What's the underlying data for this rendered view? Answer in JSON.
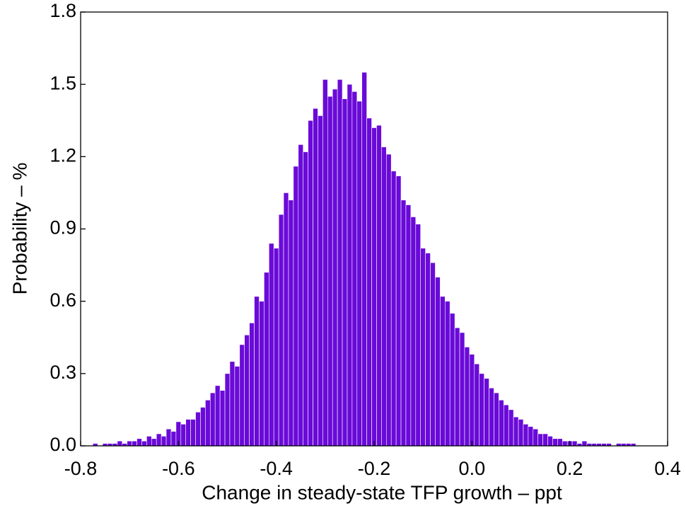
{
  "chart_data": {
    "type": "histogram",
    "xlabel": "Change in steady-state TFP growth – ppt",
    "ylabel": "Probability – %",
    "color": "#6a0ad8",
    "bins": [
      -0.775,
      -0.765,
      -0.755,
      -0.745,
      -0.735,
      -0.725,
      -0.715,
      -0.705,
      -0.695,
      -0.685,
      -0.675,
      -0.665,
      -0.655,
      -0.645,
      -0.635,
      -0.625,
      -0.615,
      -0.605,
      -0.595,
      -0.585,
      -0.575,
      -0.565,
      -0.555,
      -0.545,
      -0.535,
      -0.525,
      -0.515,
      -0.505,
      -0.495,
      -0.485,
      -0.475,
      -0.465,
      -0.455,
      -0.445,
      -0.435,
      -0.425,
      -0.415,
      -0.405,
      -0.395,
      -0.385,
      -0.375,
      -0.365,
      -0.355,
      -0.345,
      -0.335,
      -0.325,
      -0.315,
      -0.305,
      -0.295,
      -0.285,
      -0.275,
      -0.265,
      -0.255,
      -0.245,
      -0.235,
      -0.225,
      -0.215,
      -0.205,
      -0.195,
      -0.185,
      -0.175,
      -0.165,
      -0.155,
      -0.145,
      -0.135,
      -0.125,
      -0.115,
      -0.105,
      -0.095,
      -0.085,
      -0.075,
      -0.065,
      -0.055,
      -0.045,
      -0.035,
      -0.025,
      -0.015,
      -0.005,
      0.005,
      0.015,
      0.025,
      0.035,
      0.045,
      0.055,
      0.065,
      0.075,
      0.085,
      0.095,
      0.105,
      0.115,
      0.125,
      0.135,
      0.145,
      0.155,
      0.165,
      0.175,
      0.185,
      0.195,
      0.205,
      0.215,
      0.225,
      0.235,
      0.245,
      0.255,
      0.265,
      0.275,
      0.285,
      0.295,
      0.305,
      0.315,
      0.325,
      0.335
    ],
    "values": [
      0.01,
      0.0,
      0.01,
      0.01,
      0.01,
      0.02,
      0.01,
      0.02,
      0.02,
      0.03,
      0.02,
      0.04,
      0.03,
      0.05,
      0.04,
      0.07,
      0.06,
      0.1,
      0.09,
      0.11,
      0.11,
      0.14,
      0.16,
      0.19,
      0.22,
      0.25,
      0.23,
      0.3,
      0.35,
      0.33,
      0.42,
      0.46,
      0.51,
      0.62,
      0.6,
      0.72,
      0.84,
      0.82,
      0.96,
      1.05,
      1.02,
      1.16,
      1.25,
      1.22,
      1.35,
      1.4,
      1.37,
      1.52,
      1.45,
      1.48,
      1.52,
      1.44,
      1.5,
      1.47,
      1.43,
      1.55,
      1.36,
      1.32,
      1.33,
      1.24,
      1.21,
      1.14,
      1.12,
      1.02,
      1.0,
      0.95,
      0.92,
      0.82,
      0.8,
      0.76,
      0.7,
      0.62,
      0.6,
      0.55,
      0.49,
      0.47,
      0.41,
      0.38,
      0.34,
      0.3,
      0.28,
      0.24,
      0.22,
      0.19,
      0.17,
      0.15,
      0.12,
      0.11,
      0.09,
      0.08,
      0.07,
      0.05,
      0.05,
      0.04,
      0.03,
      0.03,
      0.02,
      0.02,
      0.02,
      0.01,
      0.02,
      0.01,
      0.01,
      0.01,
      0.01,
      0.01,
      0.0,
      0.01,
      0.01,
      0.01,
      0.01
    ],
    "xlim": [
      -0.8,
      0.4
    ],
    "xticks": [
      -0.8,
      -0.6,
      -0.4,
      -0.2,
      {
        "value": 0,
        "label": "0.0"
      },
      0.2,
      0.4
    ],
    "ylim": [
      0,
      1.8
    ],
    "yticks": [
      {
        "value": 0,
        "label": "0.0"
      },
      0.3,
      0.6,
      0.9,
      1.2,
      1.5,
      1.8
    ]
  }
}
